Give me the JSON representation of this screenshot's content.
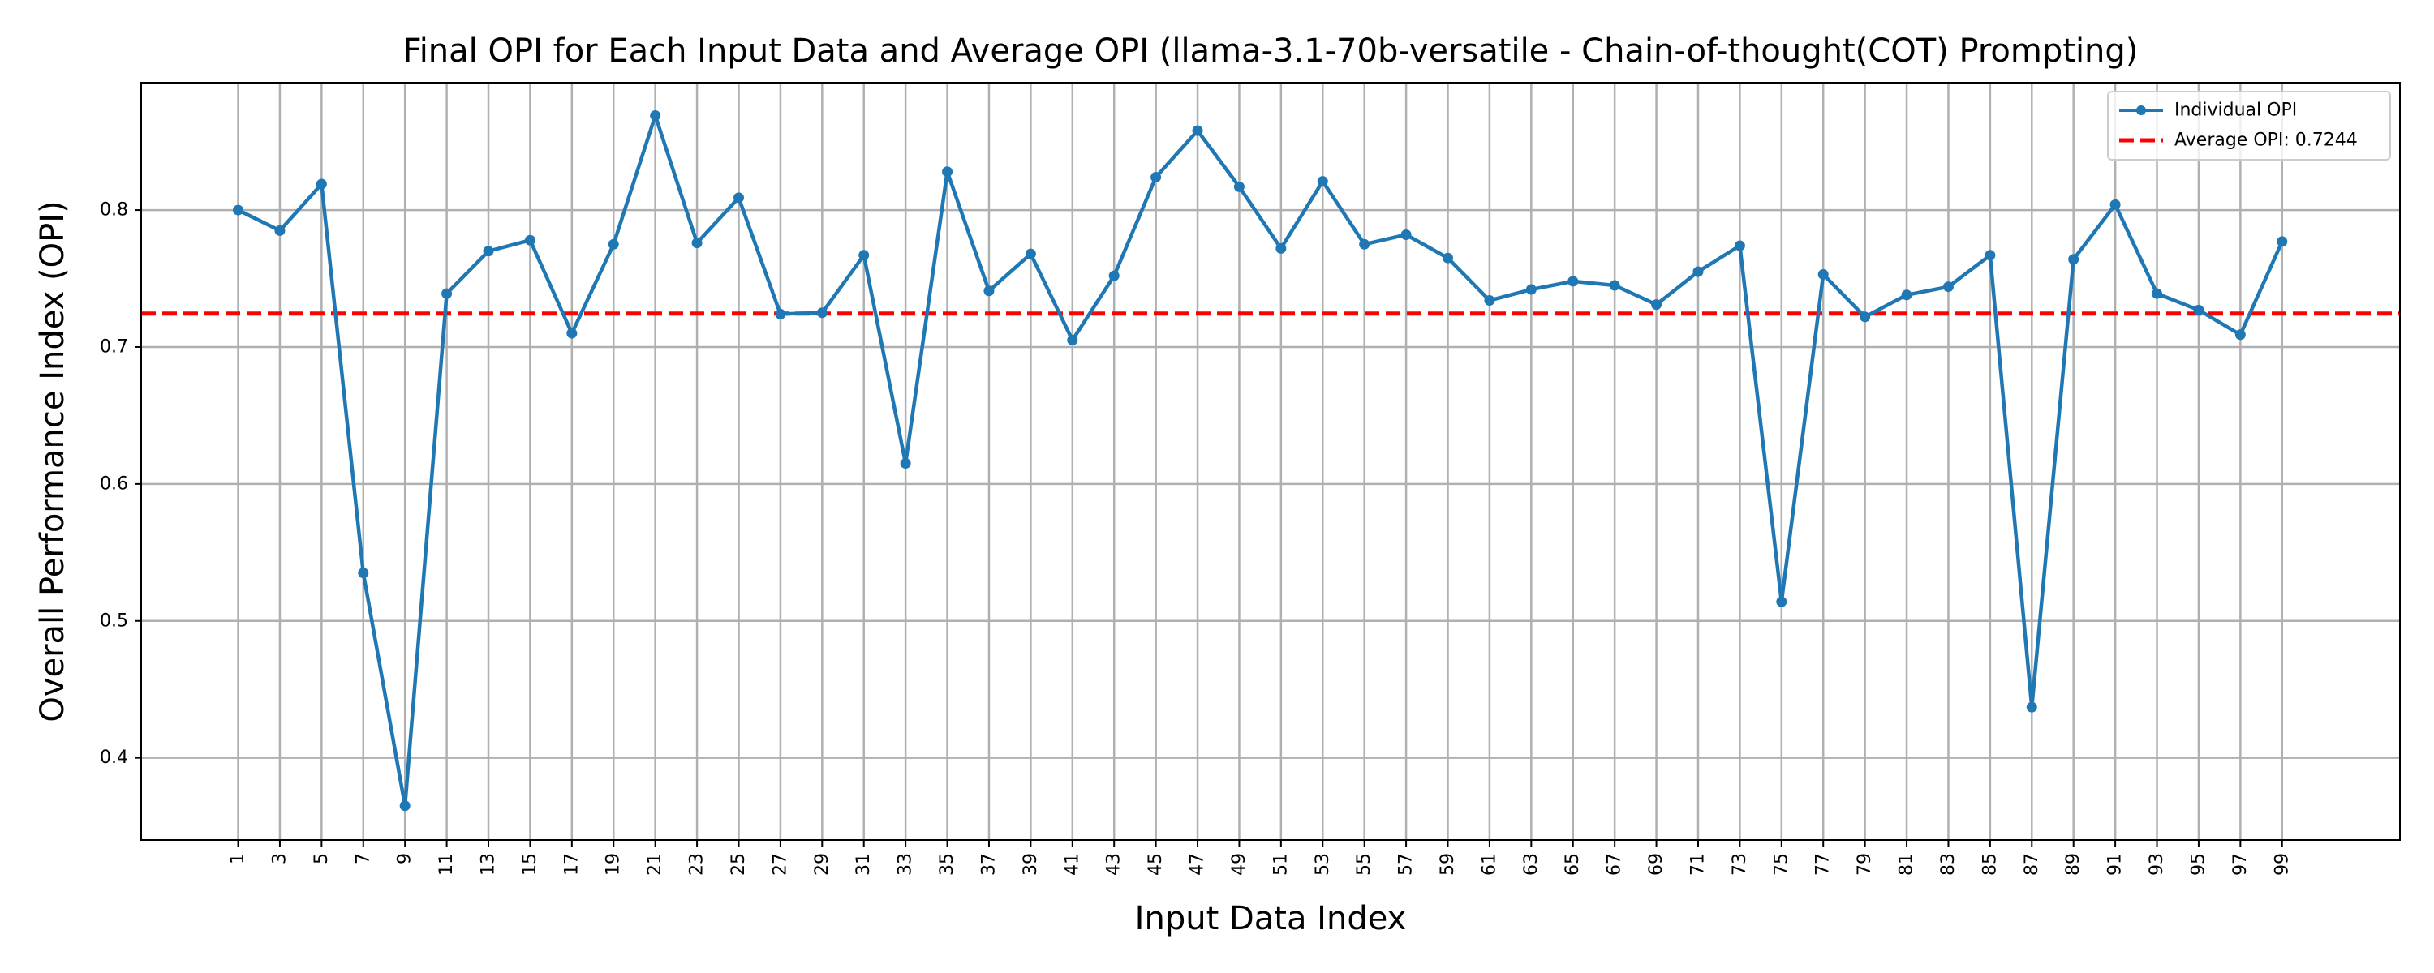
{
  "chart_data": {
    "type": "line",
    "title": "Final OPI for Each Input Data and Average OPI (llama-3.1-70b-versatile - Chain-of-thought(COT) Prompting)",
    "xlabel": "Input Data Index",
    "ylabel": "Overall Performance Index (OPI)",
    "x": [
      1,
      3,
      5,
      7,
      9,
      11,
      13,
      15,
      17,
      19,
      21,
      23,
      25,
      27,
      29,
      31,
      33,
      35,
      37,
      39,
      41,
      43,
      45,
      47,
      49,
      51,
      53,
      55,
      57,
      59,
      61,
      63,
      65,
      67,
      69,
      71,
      73,
      75,
      77,
      79,
      81,
      83,
      85,
      87,
      89,
      91,
      93,
      95,
      97,
      99
    ],
    "x_tick_labels": [
      "1",
      "3",
      "5",
      "7",
      "9",
      "11",
      "13",
      "15",
      "17",
      "19",
      "21",
      "23",
      "25",
      "27",
      "29",
      "31",
      "33",
      "35",
      "37",
      "39",
      "41",
      "43",
      "45",
      "47",
      "49",
      "51",
      "53",
      "55",
      "57",
      "59",
      "61",
      "63",
      "65",
      "67",
      "69",
      "71",
      "73",
      "75",
      "77",
      "79",
      "81",
      "83",
      "85",
      "87",
      "89",
      "91",
      "93",
      "95",
      "97",
      "99"
    ],
    "xlim": [
      -3.65,
      104.65
    ],
    "ylim": [
      0.34,
      0.893
    ],
    "y_ticks": [
      0.4,
      0.5,
      0.6,
      0.7,
      0.8
    ],
    "y_tick_labels": [
      "0.4",
      "0.5",
      "0.6",
      "0.7",
      "0.8"
    ],
    "grid": true,
    "legend_position": "top-right",
    "series": [
      {
        "name": "Individual OPI",
        "color": "#1f77b4",
        "marker": "circle",
        "values": [
          0.8,
          0.785,
          0.819,
          0.535,
          0.365,
          0.739,
          0.77,
          0.778,
          0.71,
          0.775,
          0.869,
          0.776,
          0.809,
          0.724,
          0.725,
          0.767,
          0.615,
          0.828,
          0.741,
          0.768,
          0.705,
          0.752,
          0.824,
          0.858,
          0.817,
          0.772,
          0.821,
          0.775,
          0.782,
          0.765,
          0.734,
          0.742,
          0.748,
          0.745,
          0.731,
          0.755,
          0.774,
          0.514,
          0.753,
          0.722,
          0.738,
          0.744,
          0.767,
          0.437,
          0.764,
          0.804,
          0.739,
          0.727,
          0.709,
          0.777
        ]
      }
    ],
    "reference_lines": [
      {
        "name": "Average OPI: 0.7244",
        "value": 0.7244,
        "color": "#ff0000",
        "style": "dashed"
      }
    ]
  }
}
